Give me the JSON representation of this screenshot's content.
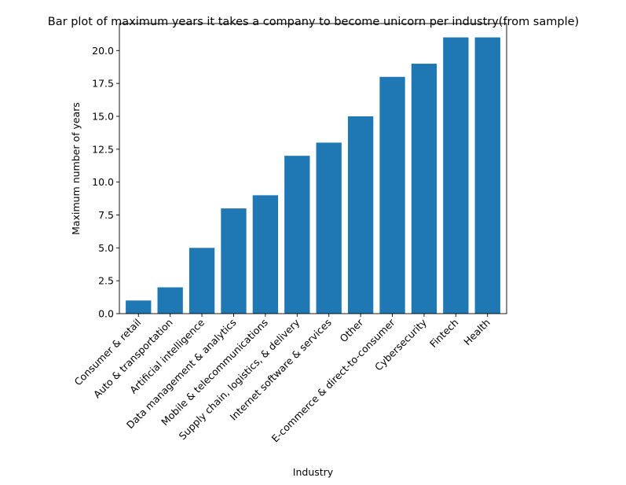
{
  "chart_data": {
    "type": "bar",
    "title": "Bar plot of maximum years it takes a company to become unicorn per industry(from sample)",
    "xlabel": "Industry",
    "ylabel": "Maximum number of years",
    "categories": [
      "Consumer & retail",
      "Auto & transportation",
      "Artificial intelligence",
      "Data management & analytics",
      "Mobile & telecommunications",
      "Supply chain, logistics, & delivery",
      "Internet software & services",
      "Other",
      "E-commerce & direct-to-consumer",
      "Cybersecurity",
      "Fintech",
      "Health"
    ],
    "values": [
      1,
      2,
      5,
      8,
      9,
      12,
      13,
      15,
      18,
      19,
      21,
      21
    ],
    "ylim": [
      0,
      22.05
    ],
    "yticks": [
      "0.0",
      "2.5",
      "5.0",
      "7.5",
      "10.0",
      "12.5",
      "15.0",
      "17.5",
      "20.0"
    ],
    "bar_color": "#1f77b4",
    "grid": false,
    "legend": false
  }
}
